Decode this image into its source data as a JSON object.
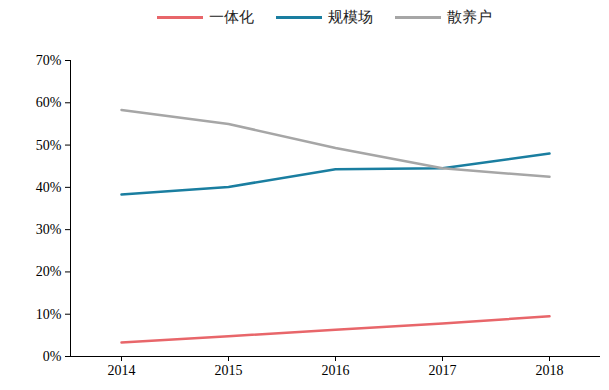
{
  "chart_data": {
    "type": "line",
    "categories": [
      "2014",
      "2015",
      "2016",
      "2017",
      "2018"
    ],
    "series": [
      {
        "name": "一体化",
        "color": "#e8666a",
        "values": [
          3.3,
          4.8,
          6.3,
          7.8,
          9.5
        ]
      },
      {
        "name": "规模场",
        "color": "#1a7ea0",
        "values": [
          38.3,
          40.1,
          44.3,
          44.5,
          48.0
        ]
      },
      {
        "name": "散养户",
        "color": "#a6a6a6",
        "values": [
          58.3,
          55.0,
          49.3,
          44.5,
          42.5
        ]
      }
    ],
    "ylim": [
      0,
      70
    ],
    "yticks": [
      {
        "value": 0,
        "label": "0%"
      },
      {
        "value": 10,
        "label": "10%"
      },
      {
        "value": 20,
        "label": "20%"
      },
      {
        "value": 30,
        "label": "30%"
      },
      {
        "value": 40,
        "label": "40%"
      },
      {
        "value": 50,
        "label": "50%"
      },
      {
        "value": 60,
        "label": "60%"
      },
      {
        "value": 70,
        "label": "70%"
      }
    ],
    "legend": "top",
    "grid": false
  }
}
